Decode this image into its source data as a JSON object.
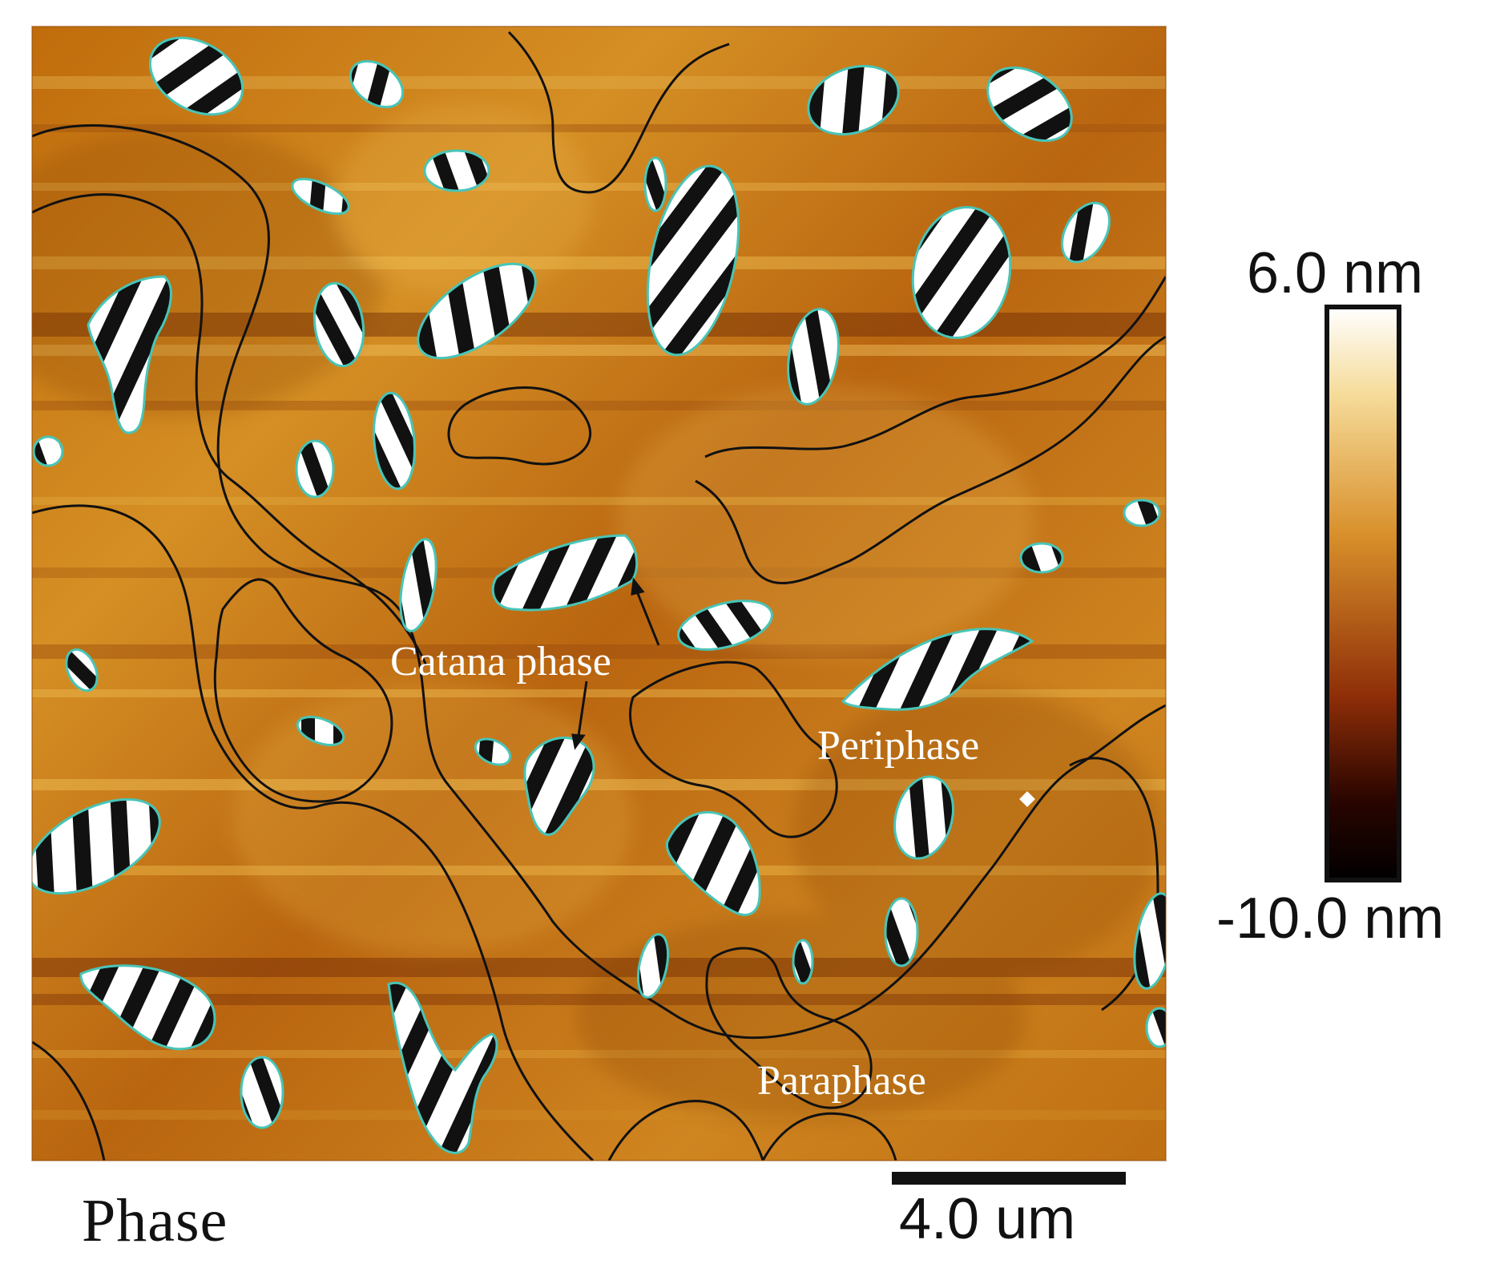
{
  "labels": {
    "catana": "Catana phase",
    "periphase": "Periphase",
    "paraphase": "Paraphase",
    "corner": "Phase"
  },
  "colorbar": {
    "max": "6.0 nm",
    "min": "-10.0 nm",
    "gradient": [
      "#ffffff",
      "#f6dc9b",
      "#d88f2a",
      "#8e2e08",
      "#2a0500",
      "#000000"
    ]
  },
  "scalebar": {
    "text": "4.0 um"
  },
  "colors": {
    "surface": "#c97b14",
    "surface_light": "#e3a12a",
    "surface_dark": "#8d4407",
    "outline_black": "#111111",
    "outline_teal": "#49c5b8"
  }
}
